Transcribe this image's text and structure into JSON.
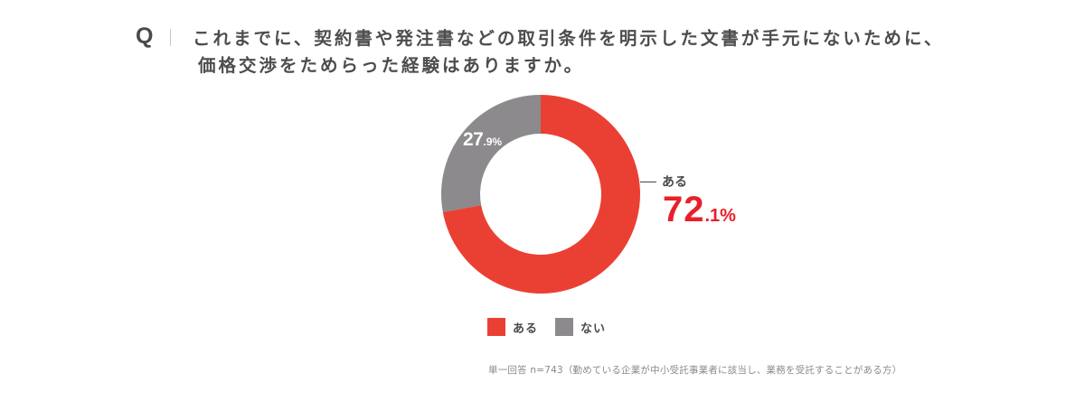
{
  "header": {
    "q_mark": "Q",
    "question_line1": "これまでに、契約書や発注書などの取引条件を明示した文書が手元にないために、",
    "question_line2": "価格交渉をためらった経験はありますか。"
  },
  "callout": {
    "label": "ある",
    "value_big": "72",
    "value_small": ".1%"
  },
  "gray_label": {
    "value_big": "27",
    "value_small": ".9%"
  },
  "legend": {
    "items": [
      {
        "label": "ある",
        "color": "#ea4034"
      },
      {
        "label": "ない",
        "color": "#8c8a8c"
      }
    ]
  },
  "footnote": "単一回答 n=743（勤めている企業が中小受託事業者に該当し、業務を受託することがある方）",
  "colors": {
    "red_slice": "#ea4034",
    "gray_slice": "#8c8a8c",
    "callout_red": "#e8202a"
  },
  "chart_data": {
    "type": "pie",
    "subtype": "donut",
    "title": "これまでに、契約書や発注書などの取引条件を明示した文書が手元にないために、価格交渉をためらった経験はありますか。",
    "categories": [
      "ある",
      "ない"
    ],
    "values": [
      72.1,
      27.9
    ],
    "unit": "%",
    "colors": [
      "#ea4034",
      "#8c8a8c"
    ],
    "start_angle": "12 o'clock, clockwise",
    "legend_position": "bottom",
    "annotations": [
      "ある 72.1%",
      "27.9%"
    ],
    "note": "単一回答 n=743（勤めている企業が中小受託事業者に該当し、業務を受託することがある方）"
  }
}
